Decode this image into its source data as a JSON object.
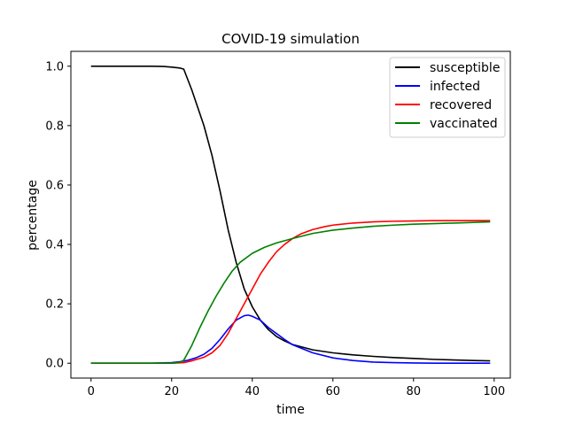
{
  "chart_data": {
    "type": "line",
    "title": "COVID-19 simulation",
    "xlabel": "time",
    "ylabel": "percentage",
    "xlim": [
      -5,
      104
    ],
    "ylim": [
      -0.05,
      1.05
    ],
    "xticks": [
      0,
      20,
      40,
      60,
      80,
      100
    ],
    "yticks": [
      0.0,
      0.2,
      0.4,
      0.6,
      0.8,
      1.0
    ],
    "xtick_labels": [
      "0",
      "20",
      "40",
      "60",
      "80",
      "100"
    ],
    "ytick_labels": [
      "0.0",
      "0.2",
      "0.4",
      "0.6",
      "0.8",
      "1.0"
    ],
    "grid": false,
    "legend_position": "top-right",
    "series": [
      {
        "name": "susceptible",
        "color": "#000000",
        "x": [
          0,
          5,
          10,
          15,
          18,
          20,
          22,
          23,
          25,
          28,
          30,
          32,
          34,
          36,
          38,
          40,
          42,
          44,
          46,
          48,
          50,
          55,
          60,
          65,
          70,
          75,
          80,
          85,
          90,
          95,
          99
        ],
        "y": [
          1.0,
          1.0,
          1.0,
          1.0,
          0.999,
          0.997,
          0.994,
          0.99,
          0.92,
          0.8,
          0.7,
          0.58,
          0.45,
          0.34,
          0.25,
          0.19,
          0.145,
          0.113,
          0.09,
          0.075,
          0.063,
          0.045,
          0.035,
          0.028,
          0.023,
          0.019,
          0.016,
          0.013,
          0.011,
          0.009,
          0.008
        ]
      },
      {
        "name": "infected",
        "color": "#0000ff",
        "x": [
          0,
          5,
          10,
          15,
          20,
          22,
          24,
          26,
          28,
          30,
          32,
          34,
          36,
          38,
          39,
          40,
          42,
          44,
          46,
          48,
          50,
          55,
          60,
          65,
          70,
          75,
          80,
          85,
          90,
          95,
          99
        ],
        "y": [
          0.0,
          0.0,
          0.0,
          0.0,
          0.002,
          0.005,
          0.01,
          0.018,
          0.03,
          0.05,
          0.08,
          0.115,
          0.145,
          0.16,
          0.162,
          0.158,
          0.145,
          0.12,
          0.1,
          0.08,
          0.062,
          0.035,
          0.018,
          0.009,
          0.004,
          0.002,
          0.001,
          0.0,
          0.0,
          0.0,
          0.0
        ]
      },
      {
        "name": "recovered",
        "color": "#ff0000",
        "x": [
          0,
          5,
          10,
          15,
          20,
          23,
          25,
          28,
          30,
          32,
          34,
          36,
          38,
          40,
          42,
          44,
          46,
          48,
          50,
          52,
          55,
          58,
          60,
          65,
          70,
          75,
          80,
          85,
          90,
          95,
          99
        ],
        "y": [
          0.0,
          0.0,
          0.0,
          0.0,
          0.0,
          0.002,
          0.008,
          0.02,
          0.035,
          0.06,
          0.1,
          0.15,
          0.2,
          0.25,
          0.3,
          0.34,
          0.375,
          0.4,
          0.42,
          0.435,
          0.45,
          0.46,
          0.465,
          0.472,
          0.476,
          0.478,
          0.479,
          0.48,
          0.48,
          0.48,
          0.48
        ]
      },
      {
        "name": "vaccinated",
        "color": "#008000",
        "x": [
          0,
          5,
          10,
          15,
          20,
          22,
          23,
          25,
          27,
          29,
          31,
          33,
          35,
          37,
          40,
          43,
          46,
          50,
          55,
          60,
          65,
          70,
          75,
          80,
          85,
          90,
          95,
          99
        ],
        "y": [
          0.0,
          0.0,
          0.0,
          0.0,
          0.0,
          0.003,
          0.01,
          0.06,
          0.12,
          0.175,
          0.225,
          0.27,
          0.31,
          0.34,
          0.37,
          0.39,
          0.405,
          0.42,
          0.437,
          0.448,
          0.455,
          0.461,
          0.465,
          0.468,
          0.47,
          0.472,
          0.474,
          0.476
        ]
      }
    ]
  }
}
